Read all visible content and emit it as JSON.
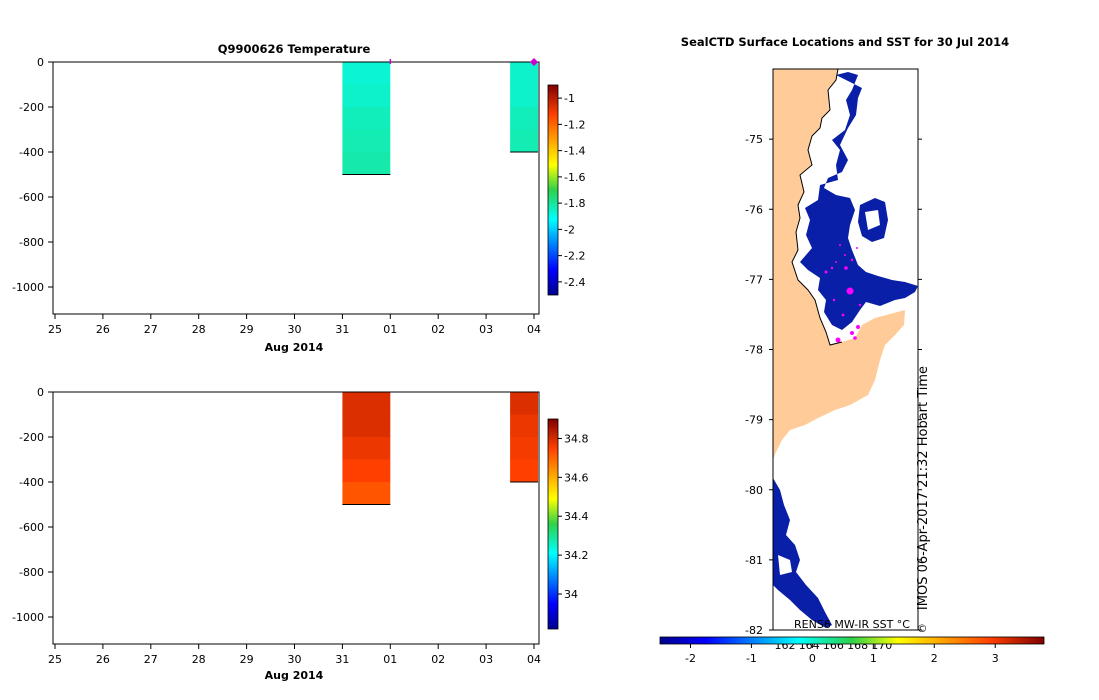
{
  "chart_data": [
    {
      "type": "heatmap",
      "title": "Q9900626  Temperature",
      "xlabel": "Aug 2014",
      "x_tick_labels": [
        "25",
        "26",
        "27",
        "28",
        "29",
        "30",
        "31",
        "01",
        "02",
        "03",
        "04"
      ],
      "x_range": [
        "2014-07-25",
        "2014-08-04"
      ],
      "y_tick_labels": [
        "0",
        "-200",
        "-400",
        "-600",
        "-800",
        "-1000"
      ],
      "ylim": [
        -1120,
        0
      ],
      "grid": false,
      "colorbar": {
        "range": [
          -2.5,
          -0.9
        ],
        "tick_labels": [
          "-1",
          "-1.2",
          "-1.4",
          "-1.6",
          "-1.8",
          "-2",
          "-2.2",
          "-2.4"
        ],
        "ticks": [
          -1,
          -1.2,
          -1.4,
          -1.6,
          -1.8,
          -2,
          -2.2,
          -2.4
        ]
      },
      "profiles": [
        {
          "x_start": "2014-07-31T00:00",
          "x_end": "2014-08-01T00:00",
          "layers": [
            {
              "depth_top": 0,
              "depth_bottom": -100,
              "value": -1.87
            },
            {
              "depth_top": -100,
              "depth_bottom": -200,
              "value": -1.86
            },
            {
              "depth_top": -200,
              "depth_bottom": -300,
              "value": -1.84
            },
            {
              "depth_top": -300,
              "depth_bottom": -400,
              "value": -1.83
            },
            {
              "depth_top": -400,
              "depth_bottom": -500,
              "value": -1.82
            }
          ]
        },
        {
          "x_start": "2014-08-03T12:00",
          "x_end": "2014-08-04T02:00",
          "layers": [
            {
              "depth_top": 0,
              "depth_bottom": -100,
              "value": -1.86
            },
            {
              "depth_top": -100,
              "depth_bottom": -200,
              "value": -1.86
            },
            {
              "depth_top": -200,
              "depth_bottom": -300,
              "value": -1.84
            },
            {
              "depth_top": -300,
              "depth_bottom": -400,
              "value": -1.83
            }
          ]
        }
      ],
      "markers": [
        {
          "x": "2014-08-04T00:00",
          "y": 0,
          "color": "#d000d0"
        },
        {
          "x": "2014-08-01T00:00",
          "y": 0,
          "color": "#d000d0"
        }
      ]
    },
    {
      "type": "heatmap",
      "title": "",
      "xlabel": "Aug 2014",
      "x_tick_labels": [
        "25",
        "26",
        "27",
        "28",
        "29",
        "30",
        "31",
        "01",
        "02",
        "03",
        "04"
      ],
      "x_range": [
        "2014-07-25",
        "2014-08-04"
      ],
      "y_tick_labels": [
        "0",
        "-200",
        "-400",
        "-600",
        "-800",
        "-1000"
      ],
      "ylim": [
        -1120,
        0
      ],
      "grid": false,
      "colorbar": {
        "range": [
          33.82,
          34.9
        ],
        "tick_labels": [
          "34.8",
          "34.6",
          "34.4",
          "34.2",
          "34"
        ],
        "ticks": [
          34.8,
          34.6,
          34.4,
          34.2,
          34.0
        ]
      },
      "profiles": [
        {
          "x_start": "2014-07-31T00:00",
          "x_end": "2014-08-01T00:00",
          "layers": [
            {
              "depth_top": 0,
              "depth_bottom": -100,
              "value": 34.79
            },
            {
              "depth_top": -100,
              "depth_bottom": -200,
              "value": 34.79
            },
            {
              "depth_top": -200,
              "depth_bottom": -300,
              "value": 34.77
            },
            {
              "depth_top": -300,
              "depth_bottom": -400,
              "value": 34.75
            },
            {
              "depth_top": -400,
              "depth_bottom": -500,
              "value": 34.72
            }
          ]
        },
        {
          "x_start": "2014-08-03T12:00",
          "x_end": "2014-08-04T02:00",
          "layers": [
            {
              "depth_top": 0,
              "depth_bottom": -100,
              "value": 34.79
            },
            {
              "depth_top": -100,
              "depth_bottom": -200,
              "value": 34.77
            },
            {
              "depth_top": -200,
              "depth_bottom": -300,
              "value": 34.76
            },
            {
              "depth_top": -300,
              "depth_bottom": -400,
              "value": 34.75
            }
          ]
        }
      ]
    },
    {
      "type": "heatmap",
      "title": "SealCTD Surface Locations and SST for 30 Jul 2014",
      "y_tick_labels": [
        "-75",
        "-76",
        "-77",
        "-78",
        "-79",
        "-80",
        "-81",
        "-82"
      ],
      "ylim": [
        -82,
        -74
      ],
      "x_tick_labels": [
        "162",
        "164",
        "166",
        "168",
        "170"
      ],
      "land_color": "#ffcc99",
      "sst_color": "#0a1fa8",
      "marker_color": "#ff00ff",
      "colorbar": {
        "label": "RENS6 MW-IR SST °C",
        "range": [
          -2.5,
          3.8
        ],
        "tick_labels": [
          "-2",
          "-1",
          "0",
          "1",
          "2",
          "3"
        ],
        "ticks": [
          -2,
          -1,
          0,
          1,
          2,
          3
        ]
      },
      "side_text": "IMOS 06-Apr-2017 21:32 Hobart Time",
      "copyright": "©"
    }
  ]
}
